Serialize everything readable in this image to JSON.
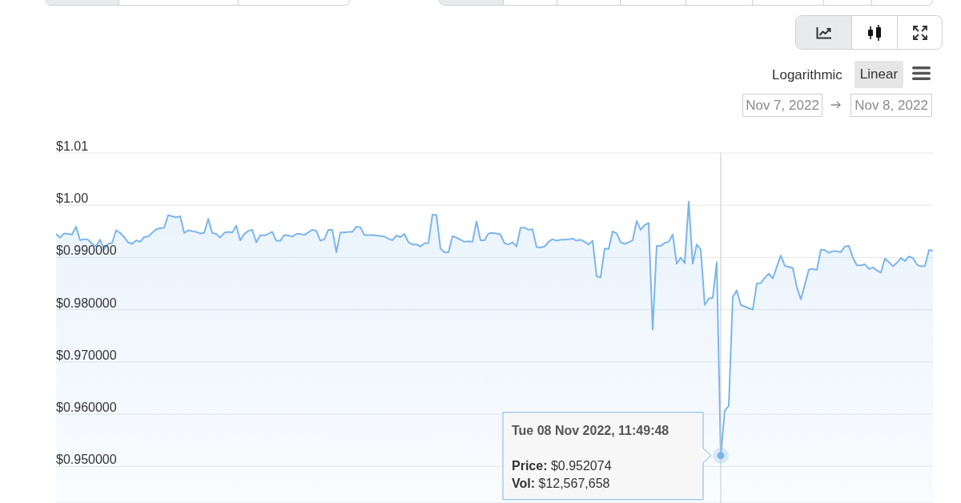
{
  "chart_data": {
    "type": "area",
    "categories": [
      null,
      null,
      null,
      null,
      null,
      null,
      null,
      null,
      null,
      null,
      null,
      null,
      null,
      null,
      null,
      null,
      null,
      null,
      null,
      null,
      null,
      null,
      null,
      null,
      null,
      null,
      null,
      null,
      null,
      null,
      null,
      null,
      null,
      null,
      null,
      null,
      null,
      null,
      null,
      null,
      null,
      null,
      null,
      null,
      null,
      null,
      null,
      null,
      null,
      null,
      null,
      null,
      null,
      null,
      null,
      null,
      null,
      null,
      null,
      null,
      null,
      null,
      null,
      null,
      null,
      null,
      null,
      null,
      null,
      null,
      null,
      null,
      null,
      null,
      null,
      null,
      null,
      null,
      null,
      null,
      null,
      null,
      null,
      null,
      null,
      null,
      null,
      null,
      null,
      null,
      null,
      null,
      null,
      null,
      null,
      null,
      null,
      null,
      null,
      null,
      null,
      null,
      null,
      null,
      null,
      null,
      null,
      null,
      null,
      null,
      null,
      null,
      null,
      null,
      null,
      null,
      null,
      null,
      null,
      null,
      null,
      null,
      null,
      null,
      null,
      null,
      null,
      null,
      null,
      null,
      null,
      null,
      null,
      null,
      null,
      null,
      null,
      null,
      null,
      null,
      null,
      null,
      null,
      null,
      null,
      null,
      null,
      null,
      null,
      null,
      null,
      null,
      null,
      null,
      null,
      null,
      null,
      null,
      null,
      null,
      null,
      null,
      null,
      null,
      null,
      null,
      null,
      null,
      null,
      null,
      null,
      null,
      null,
      null,
      null,
      null,
      null,
      null,
      null,
      null,
      null,
      null,
      null,
      null,
      null,
      null,
      null,
      null,
      null,
      null,
      null,
      null,
      null,
      null,
      null,
      null,
      null,
      null,
      null,
      null,
      null,
      null,
      null,
      null,
      null,
      null,
      null,
      null,
      null,
      null,
      null,
      null,
      null,
      null,
      null,
      null,
      null,
      null,
      null,
      null
    ],
    "values": [
      0.9945,
      0.9938,
      0.9946,
      0.9945,
      0.9944,
      0.9959,
      0.9933,
      0.9935,
      0.9934,
      0.9926,
      0.9921,
      0.9934,
      0.9916,
      0.9926,
      0.9928,
      0.9952,
      0.9947,
      0.9939,
      0.9929,
      0.9926,
      0.9933,
      0.993,
      0.9939,
      0.994,
      0.9947,
      0.9954,
      0.9956,
      0.9957,
      0.9981,
      0.9979,
      0.9977,
      0.9979,
      0.9947,
      0.9952,
      0.995,
      0.9949,
      0.9946,
      0.9947,
      0.9974,
      0.9947,
      0.9945,
      0.9938,
      0.9947,
      0.9949,
      0.9948,
      0.9961,
      0.9933,
      0.9945,
      0.9951,
      0.9953,
      0.9929,
      0.9943,
      0.9942,
      0.9945,
      0.9949,
      0.9932,
      0.9932,
      0.9943,
      0.9942,
      0.994,
      0.9945,
      0.9945,
      0.9943,
      0.9948,
      0.9953,
      0.9951,
      0.9932,
      0.9935,
      0.9953,
      0.9953,
      0.991,
      0.9948,
      0.9948,
      0.9949,
      0.9949,
      0.9959,
      0.9958,
      0.9943,
      0.9943,
      0.9943,
      0.9942,
      0.9941,
      0.994,
      0.9936,
      0.9933,
      0.9942,
      0.9939,
      0.9945,
      0.9929,
      0.9925,
      0.9925,
      0.9921,
      0.9927,
      0.9928,
      0.9982,
      0.9981,
      0.9917,
      0.991,
      0.991,
      0.9941,
      0.9938,
      0.9934,
      0.993,
      0.9931,
      0.993,
      0.9969,
      0.9933,
      0.9933,
      0.9946,
      0.9947,
      0.9946,
      0.9944,
      0.9927,
      0.9925,
      0.9929,
      0.9921,
      0.9957,
      0.9957,
      0.9953,
      0.9954,
      0.992,
      0.9919,
      0.9921,
      0.993,
      0.9935,
      0.9932,
      0.9934,
      0.9934,
      0.9935,
      0.9936,
      0.9932,
      0.9934,
      0.993,
      0.9925,
      0.9932,
      0.9864,
      0.9862,
      0.9917,
      0.9916,
      0.995,
      0.9946,
      0.9929,
      0.9926,
      0.9929,
      0.9933,
      0.997,
      0.9953,
      0.9962,
      0.9966,
      0.9762,
      0.9922,
      0.9922,
      0.9928,
      0.993,
      0.9944,
      0.9888,
      0.99,
      0.9889,
      1.0007,
      0.9888,
      0.9925,
      0.9915,
      0.9809,
      0.9821,
      0.9823,
      0.9891,
      0.952074,
      0.9607,
      0.9616,
      0.9824,
      0.9837,
      0.9809,
      0.9806,
      0.9803,
      0.98,
      0.985,
      0.9851,
      0.9861,
      0.9869,
      0.986,
      0.9882,
      0.9904,
      0.9884,
      0.9882,
      0.988,
      0.9843,
      0.982,
      0.9848,
      0.9877,
      0.9878,
      0.9876,
      0.9915,
      0.9914,
      0.9909,
      0.9912,
      0.9912,
      0.991,
      0.9921,
      0.9922,
      0.99,
      0.9885,
      0.9885,
      0.9887,
      0.9878,
      0.9881,
      0.9875,
      0.9871,
      0.9898,
      0.9891,
      0.9883,
      0.989,
      0.9899,
      0.9893,
      0.9902,
      0.9899,
      0.9886,
      0.9883,
      0.9884,
      0.9914,
      0.9913
    ],
    "color": "#7cb5ec",
    "ylim": [
      0.943,
      1.01
    ],
    "yticks": [
      {
        "value": 1.01,
        "label": "$1.01"
      },
      {
        "value": 1.0,
        "label": "$1.00"
      },
      {
        "value": 0.99,
        "label": "$0.990000"
      },
      {
        "value": 0.98,
        "label": "$0.980000"
      },
      {
        "value": 0.97,
        "label": "$0.970000"
      },
      {
        "value": 0.96,
        "label": "$0.960000"
      },
      {
        "value": 0.95,
        "label": "$0.950000"
      }
    ],
    "tick_labels": "y",
    "grid": "y",
    "annotations": [
      "Tue 08 Nov 2022, 11:49:48",
      "Price: $0.952074",
      "Vol: $12,567,658",
      "Logarithmic",
      "Linear",
      "Nov 7, 2022",
      "Nov 8, 2022"
    ]
  }
}
